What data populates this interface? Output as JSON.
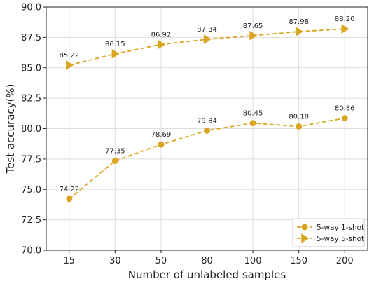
{
  "chart_data": {
    "type": "line",
    "title": "",
    "xlabel": "Number of unlabeled samples",
    "ylabel": "Test accuracy(%)",
    "categories": [
      "15",
      "30",
      "50",
      "80",
      "100",
      "150",
      "200"
    ],
    "ylim": [
      70.0,
      90.0
    ],
    "yticks": [
      "70.0",
      "72.5",
      "75.0",
      "77.5",
      "80.0",
      "82.5",
      "85.0",
      "87.5",
      "90.0"
    ],
    "grid": true,
    "legend_position": "bottom-right",
    "series": [
      {
        "name": "5-way 1-shot",
        "marker": "circle",
        "line_style": "dashed",
        "color": "#DAA520",
        "values": [
          74.22,
          77.35,
          78.69,
          79.84,
          80.45,
          80.18,
          80.86
        ],
        "labels": [
          "74.22",
          "77.35",
          "78.69",
          "79.84",
          "80.45",
          "80.18",
          "80.86"
        ]
      },
      {
        "name": "5-way 5-shot",
        "marker": "triangle-right",
        "line_style": "dashed",
        "color": "#DAA520",
        "values": [
          85.22,
          86.15,
          86.92,
          87.34,
          87.65,
          87.98,
          88.2
        ],
        "labels": [
          "85.22",
          "86.15",
          "86.92",
          "87.34",
          "87.65",
          "87.98",
          "88.20"
        ]
      }
    ]
  }
}
